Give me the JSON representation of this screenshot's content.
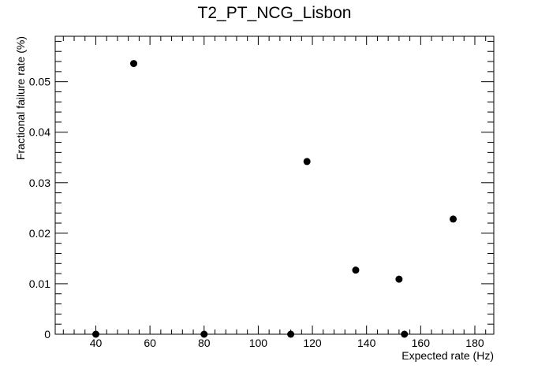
{
  "chart_data": {
    "type": "scatter",
    "title": "T2_PT_NCG_Lisbon",
    "xlabel": "Expected rate (Hz)",
    "ylabel": "Fractional failure rate (%)",
    "xlim": [
      25,
      187
    ],
    "ylim": [
      0,
      0.059
    ],
    "x_ticks": [
      40,
      60,
      80,
      100,
      120,
      140,
      160,
      180
    ],
    "y_ticks": [
      0,
      0.01,
      0.02,
      0.03,
      0.04,
      0.05
    ],
    "y_tick_labels": [
      "0",
      "0.01",
      "0.02",
      "0.03",
      "0.04",
      "0.05"
    ],
    "grid": false,
    "marker_color": "#000000",
    "points": [
      {
        "x": 40,
        "y": 0
      },
      {
        "x": 54,
        "y": 0.0536
      },
      {
        "x": 80,
        "y": 0
      },
      {
        "x": 112,
        "y": 0
      },
      {
        "x": 118,
        "y": 0.0342
      },
      {
        "x": 136,
        "y": 0.0127
      },
      {
        "x": 152,
        "y": 0.0109
      },
      {
        "x": 154,
        "y": 0
      },
      {
        "x": 172,
        "y": 0.0228
      }
    ]
  }
}
